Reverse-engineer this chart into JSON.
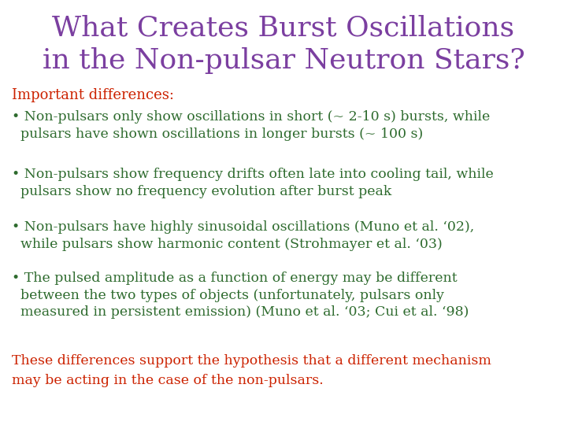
{
  "background_color": "#ffffff",
  "title_line1": "What Creates Burst Oscillations",
  "title_line2": "in the Non-pulsar Neutron Stars?",
  "title_color": "#7b3fa0",
  "title_fontsize": 26,
  "subtitle": "Important differences:",
  "subtitle_color": "#cc2200",
  "subtitle_fontsize": 13,
  "bullet_color": "#2e6b2e",
  "bullet_fontsize": 12.5,
  "conclusion_color": "#cc2200",
  "conclusion_fontsize": 12.5,
  "bullets": [
    "• Non-pulsars only show oscillations in short (~ 2-10 s) bursts, while\n  pulsars have shown oscillations in longer bursts (~ 100 s)",
    "• Non-pulsars show frequency drifts often late into cooling tail, while\n  pulsars show no frequency evolution after burst peak",
    "• Non-pulsars have highly sinusoidal oscillations (Muno et al. ‘02),\n  while pulsars show harmonic content (Strohmayer et al. ‘03)",
    "• The pulsed amplitude as a function of energy may be different\n  between the two types of objects (unfortunately, pulsars only\n  measured in persistent emission) (Muno et al. ‘03; Cui et al. ‘98)"
  ],
  "conclusion_line1": "These differences support the hypothesis that a different mechanism",
  "conclusion_line2": "may be acting in the case of the non-pulsars."
}
